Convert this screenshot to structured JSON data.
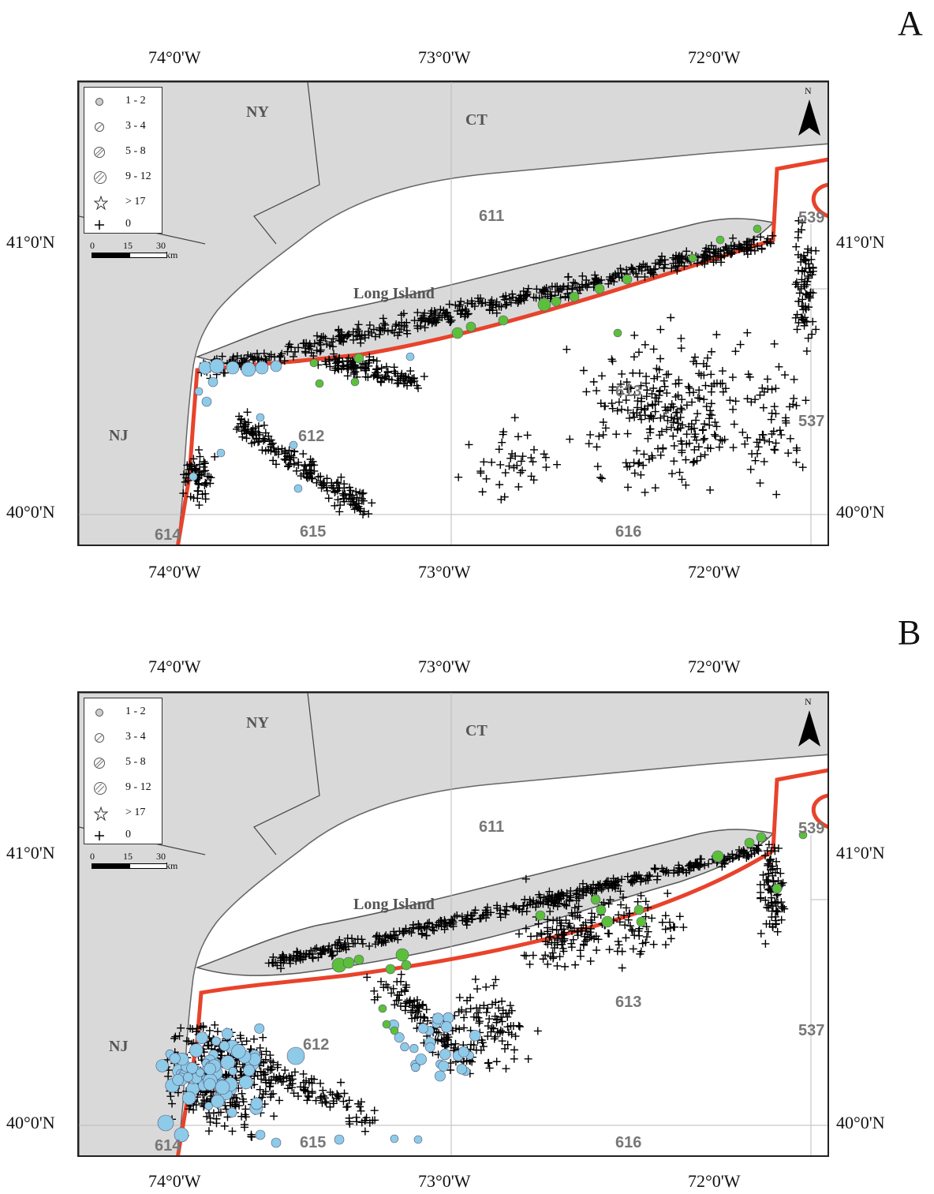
{
  "panels": [
    {
      "id": "A",
      "letter": "A",
      "lon_labels": [
        "74°0'W",
        "73°0'W",
        "72°0'W"
      ],
      "lat_labels": [
        "41°0'N",
        "40°0'N"
      ],
      "place_labels": {
        "ny": "NY",
        "ct": "CT",
        "nj": "NJ",
        "long_island": "Long Island"
      },
      "area_labels": [
        "611",
        "612",
        "613",
        "614",
        "615",
        "616",
        "537",
        "539"
      ]
    },
    {
      "id": "B",
      "letter": "B",
      "lon_labels": [
        "74°0'W",
        "73°0'W",
        "72°0'W"
      ],
      "lat_labels": [
        "41°0'N",
        "40°0'N"
      ],
      "place_labels": {
        "ny": "NY",
        "ct": "CT",
        "nj": "NJ",
        "long_island": "Long Island"
      },
      "area_labels": [
        "611",
        "612",
        "613",
        "614",
        "615",
        "616",
        "537",
        "539"
      ]
    }
  ],
  "legend": {
    "items": [
      {
        "label": "1 - 2",
        "symbol": "small-circle"
      },
      {
        "label": "3 - 4",
        "symbol": "hatched-circle"
      },
      {
        "label": "5 - 8",
        "symbol": "hatched-circle"
      },
      {
        "label": "9 - 12",
        "symbol": "hatched-circle"
      },
      {
        "label": "> 17",
        "symbol": "star"
      },
      {
        "label": "0",
        "symbol": "plus"
      }
    ],
    "scale": {
      "ticks": [
        "0",
        "15",
        "30"
      ],
      "unit": "km"
    }
  },
  "north_label": "N",
  "colors": {
    "land": "#d9d9d9",
    "boundary": "#e8432b",
    "blue_points": "#8ecbe8",
    "green_points": "#5cbf3a",
    "plus": "#000000",
    "grid": "#bbbbbb"
  }
}
